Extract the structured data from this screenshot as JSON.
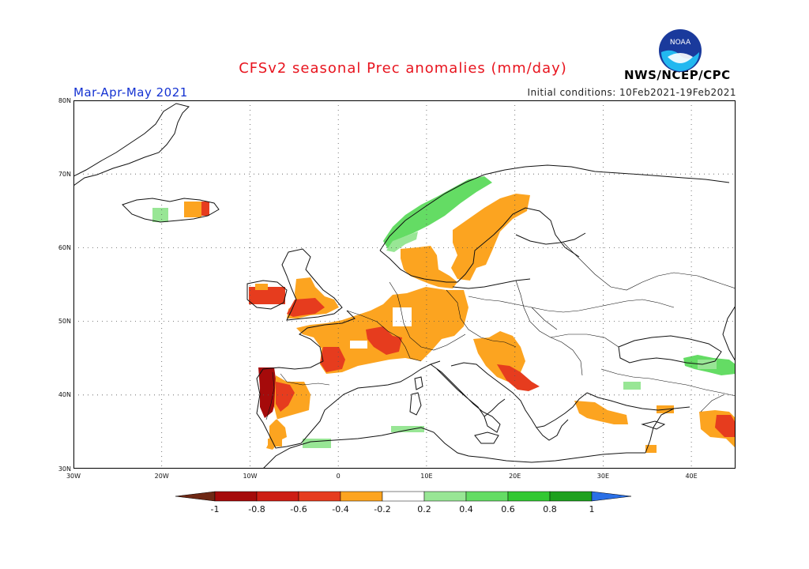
{
  "header": {
    "title": "CFSv2 seasonal Prec anomalies (mm/day)",
    "period": "Mar-Apr-May 2021",
    "initial_conditions": "Initial conditions: 10Feb2021-19Feb2021",
    "agency": "NWS/NCEP/CPC",
    "logo_text": "NOAA"
  },
  "map": {
    "region": "Europe",
    "lon_range": [
      -30,
      45
    ],
    "lat_range": [
      30,
      80
    ],
    "lon_ticks": [
      "30W",
      "20W",
      "10W",
      "0",
      "10E",
      "20E",
      "30E",
      "40E"
    ],
    "lat_ticks": [
      "80N",
      "70N",
      "60N",
      "50N",
      "40N",
      "30N"
    ],
    "anomaly_regions": [
      {
        "area": "Iceland west",
        "class": "0.2 to 0.4",
        "color": "#98e695"
      },
      {
        "area": "Iceland east",
        "class": "-0.4 to -0.2",
        "color": "#fca420"
      },
      {
        "area": "Iceland east tip",
        "class": "-0.6 to -0.4",
        "color": "#e63c1e"
      },
      {
        "area": "Norway coast",
        "class": "0.2 to 0.6",
        "color": "#50d050"
      },
      {
        "area": "Sweden",
        "class": "-0.4 to -0.2",
        "color": "#fca420"
      },
      {
        "area": "Denmark / N Germany",
        "class": "-0.4 to -0.2",
        "color": "#fca420"
      },
      {
        "area": "Ireland",
        "class": "-0.6 to -0.4",
        "color": "#e63c1e"
      },
      {
        "area": "Wales / SW England",
        "class": "-0.6 to -0.4",
        "color": "#e63c1e"
      },
      {
        "area": "England",
        "class": "-0.4 to -0.2",
        "color": "#fca420"
      },
      {
        "area": "France",
        "class": "-0.4 to -0.2",
        "color": "#fca420"
      },
      {
        "area": "Central France",
        "class": "-0.6 to -0.4",
        "color": "#e63c1e"
      },
      {
        "area": "Benelux / Germany",
        "class": "-0.4 to -0.2",
        "color": "#fca420"
      },
      {
        "area": "Alps north",
        "class": "-0.6 to -0.4",
        "color": "#e63c1e"
      },
      {
        "area": "Portugal",
        "class": "-1 to -0.8",
        "color": "#a50a0a"
      },
      {
        "area": "NW Spain",
        "class": "-0.6 to -0.4",
        "color": "#e63c1e"
      },
      {
        "area": "Western Iberia",
        "class": "-0.4 to -0.2",
        "color": "#fca420"
      },
      {
        "area": "Croatia / Bosnia",
        "class": "-0.4 to -0.2",
        "color": "#fca420"
      },
      {
        "area": "Montenegro / Albania",
        "class": "-0.6 to -0.4",
        "color": "#e63c1e"
      },
      {
        "area": "Southern Turkey",
        "class": "-0.4 to -0.2",
        "color": "#fca420"
      },
      {
        "area": "NE Turkey",
        "class": "0.2 to 0.6",
        "color": "#50d050"
      },
      {
        "area": "N Iraq / Iran border",
        "class": "-0.6 to -0.4",
        "color": "#e63c1e"
      },
      {
        "area": "Algeria coast",
        "class": "0.2 to 0.4",
        "color": "#98e695"
      },
      {
        "area": "Tunisia",
        "class": "0.2 to 0.4",
        "color": "#98e695"
      }
    ]
  },
  "colorbar": {
    "labels": [
      "-1",
      "-0.8",
      "-0.6",
      "-0.4",
      "-0.2",
      "0.2",
      "0.4",
      "0.6",
      "0.8",
      "1"
    ],
    "colors": [
      "#a50a0a",
      "#cd1e14",
      "#e63c1e",
      "#fca420",
      "#ffffff",
      "#98e695",
      "#64dc64",
      "#32c832",
      "#1ea01e"
    ],
    "low_color": "#6e2814",
    "high_color": "#2a6fe6"
  }
}
